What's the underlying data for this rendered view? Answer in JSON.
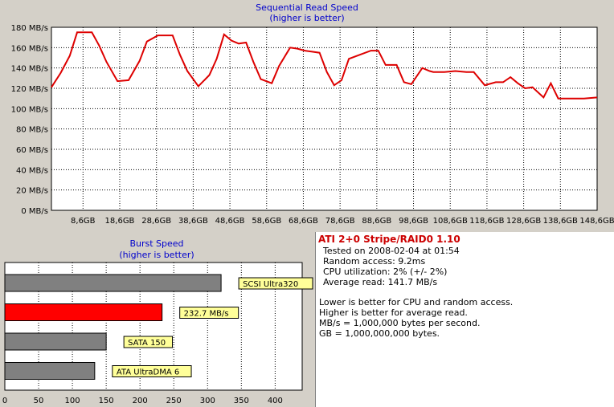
{
  "sequential": {
    "title": "Sequential Read Speed",
    "subtitle": "(higher is better)"
  },
  "burst": {
    "title": "Burst Speed",
    "subtitle": "(higher is better)"
  },
  "info": {
    "title": "ATI 2+0 Stripe/RAID0 1.10",
    "tested": "Tested on 2008-02-04 at 01:54",
    "random_access": "Random access: 9.2ms",
    "cpu": "CPU utilization: 2% (+/- 2%)",
    "average": "Average read: 141.7 MB/s",
    "note1": "Lower is better for CPU and random access.",
    "note2": "Higher is better for average read.",
    "note3": "MB/s = 1,000,000 bytes per second.",
    "note4": "GB = 1,000,000,000 bytes."
  },
  "chart_data": [
    {
      "type": "line",
      "title": "Sequential Read Speed",
      "subtitle": "(higher is better)",
      "xlabel": "",
      "ylabel": "",
      "ylim": [
        0,
        180
      ],
      "xlim": [
        0,
        148.6
      ],
      "y_ticks": [
        "0 MB/s",
        "20 MB/s",
        "40 MB/s",
        "60 MB/s",
        "80 MB/s",
        "100 MB/s",
        "120 MB/s",
        "140 MB/s",
        "160 MB/s",
        "180 MB/s"
      ],
      "y_tick_values": [
        0,
        20,
        40,
        60,
        80,
        100,
        120,
        140,
        160,
        180
      ],
      "x_ticks": [
        "8,6GB",
        "18,6GB",
        "28,6GB",
        "38,6GB",
        "48,6GB",
        "58,6GB",
        "68,6GB",
        "78,6GB",
        "88,6GB",
        "98,6GB",
        "108,6GB",
        "118,6GB",
        "128,6GB",
        "138,6GB",
        "148,6GB"
      ],
      "x_tick_values": [
        8.6,
        18.6,
        28.6,
        38.6,
        48.6,
        58.6,
        68.6,
        78.6,
        88.6,
        98.6,
        108.6,
        118.6,
        128.6,
        138.6,
        148.6
      ],
      "grid": true,
      "color": "#dd0000",
      "series": [
        {
          "x": [
            0,
            2.5,
            5,
            7,
            9,
            11,
            13,
            15,
            18,
            21,
            24,
            26,
            29,
            31,
            33,
            35,
            37,
            40,
            43,
            45,
            47,
            49,
            51,
            53,
            55,
            57,
            60,
            62,
            65,
            67,
            69,
            71,
            73,
            75,
            77,
            79,
            81,
            84,
            87,
            89,
            91,
            94,
            96,
            98,
            101,
            103,
            104,
            107,
            110,
            113,
            115,
            118,
            121,
            123,
            125,
            127,
            129,
            131,
            134,
            136,
            138,
            140,
            142,
            145,
            148.6
          ],
          "y": [
            121,
            135,
            152,
            175,
            175,
            175,
            162,
            146,
            127,
            128,
            147,
            166,
            172,
            172,
            172,
            153,
            137,
            122,
            133,
            149,
            173,
            167,
            164,
            165,
            146,
            129,
            125,
            142,
            160,
            159,
            157,
            156,
            155,
            136,
            123,
            128,
            149,
            153,
            157,
            157,
            143,
            143,
            126,
            124,
            140,
            137,
            136,
            136,
            137,
            136,
            136,
            123,
            126,
            126,
            131,
            125,
            120,
            121,
            111,
            125,
            110,
            110,
            110,
            110,
            111
          ]
        }
      ]
    },
    {
      "type": "bar",
      "orientation": "horizontal",
      "title": "Burst Speed",
      "subtitle": "(higher is better)",
      "xlim": [
        0,
        440
      ],
      "x_ticks": [
        "0",
        "50",
        "100",
        "150",
        "200",
        "250",
        "300",
        "350",
        "400"
      ],
      "x_tick_values": [
        0,
        50,
        100,
        150,
        200,
        250,
        300,
        350,
        400
      ],
      "categories": [
        "SCSI Ultra320",
        "232.7 MB/s",
        "SATA 150",
        "ATA UltraDMA 6"
      ],
      "values": [
        320,
        232.7,
        150,
        133
      ],
      "colors": [
        "#808080",
        "#ff0000",
        "#808080",
        "#808080"
      ]
    }
  ]
}
